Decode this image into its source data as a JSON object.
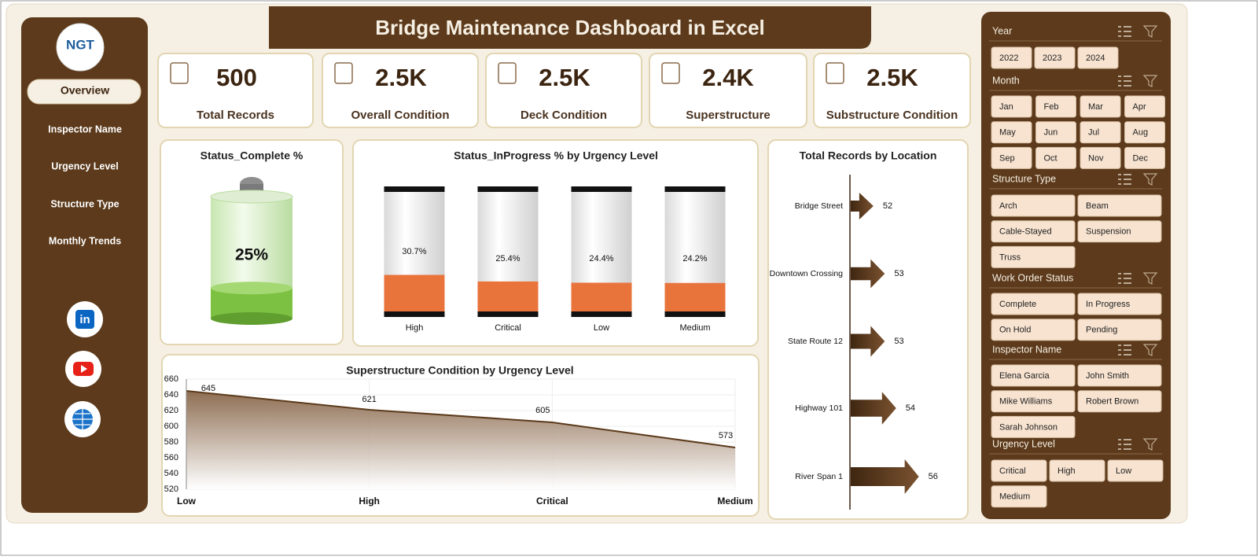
{
  "header": {
    "title": "Bridge Maintenance Dashboard in Excel"
  },
  "logo": {
    "text": "NGT"
  },
  "nav": [
    "Overview",
    "Inspector Name",
    "Urgency Level",
    "Structure Type",
    "Monthly Trends"
  ],
  "kpis": [
    {
      "value": "500",
      "label": "Total Records"
    },
    {
      "value": "2.5K",
      "label": "Overall Condition"
    },
    {
      "value": "2.5K",
      "label": "Deck Condition"
    },
    {
      "value": "2.4K",
      "label": "Superstructure"
    },
    {
      "value": "2.5K",
      "label": "Substructure Condition"
    }
  ],
  "chart_data": [
    {
      "type": "battery",
      "title": "Status_Complete %",
      "values": [
        25
      ],
      "value_labels": [
        "25%"
      ],
      "ylim": [
        0,
        100
      ],
      "color": "#7cc142"
    },
    {
      "type": "cylinder",
      "title": "Status_InProgress % by Urgency Level",
      "categories": [
        "High",
        "Critical",
        "Low",
        "Medium"
      ],
      "values": [
        30.7,
        25.4,
        24.4,
        24.2
      ],
      "value_labels": [
        "30.7%",
        "25.4%",
        "24.4%",
        "24.2%"
      ],
      "ylim": [
        0,
        100
      ],
      "color": "#e8743b"
    },
    {
      "type": "area",
      "title": "Superstructure Condition by Urgency Level",
      "categories": [
        "Low",
        "High",
        "Critical",
        "Medium"
      ],
      "values": [
        645,
        621,
        605,
        573
      ],
      "ylim": [
        520,
        660
      ],
      "yticks": [
        520,
        540,
        560,
        580,
        600,
        620,
        640,
        660
      ],
      "grid": true,
      "color": "#5c3a1b"
    },
    {
      "type": "arrow",
      "title": "Total Records by Location",
      "categories": [
        "Bridge Street",
        "Downtown Crossing",
        "State Route 12",
        "Highway 101",
        "River Span 1"
      ],
      "values": [
        52,
        53,
        53,
        54,
        56
      ],
      "xlim": [
        50,
        59
      ],
      "color": "#5c3a1b"
    }
  ],
  "slicers": [
    {
      "title": "Year",
      "items": [
        "2022",
        "2023",
        "2024"
      ]
    },
    {
      "title": "Month",
      "items": [
        "Jan",
        "Feb",
        "Mar",
        "Apr",
        "May",
        "Jun",
        "Jul",
        "Aug",
        "Sep",
        "Oct",
        "Nov",
        "Dec"
      ]
    },
    {
      "title": "Structure Type",
      "items": [
        "Arch",
        "Beam",
        "Cable-Stayed",
        "Suspension",
        "Truss"
      ]
    },
    {
      "title": "Work Order Status",
      "items": [
        "Complete",
        "In Progress",
        "On Hold",
        "Pending"
      ]
    },
    {
      "title": "Inspector Name",
      "items": [
        "Elena Garcia",
        "John Smith",
        "Mike Williams",
        "Robert Brown",
        "Sarah Johnson"
      ]
    },
    {
      "title": "Urgency Level",
      "items": [
        "Critical",
        "High",
        "Low",
        "Medium"
      ]
    }
  ]
}
